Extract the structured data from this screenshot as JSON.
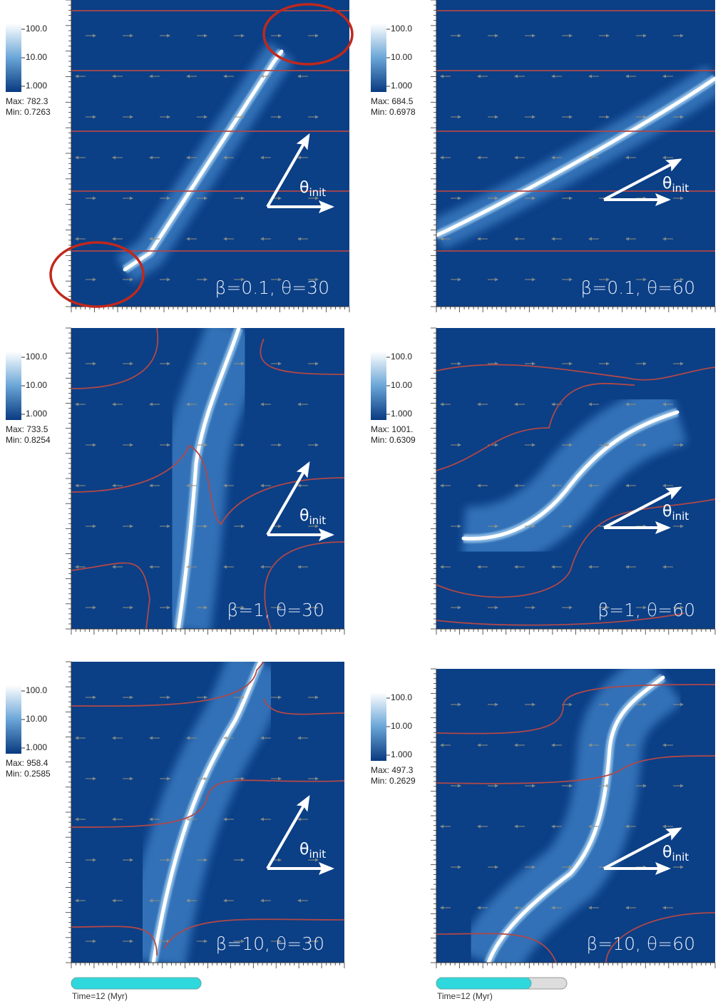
{
  "panels": [
    {
      "colorbar": [
        "100.0",
        "10.00",
        "1.000"
      ],
      "max": "Max: 782.3",
      "min": "Min: 0.7263",
      "theta_symbol": "θ",
      "theta_subscript": "init",
      "label": "β=0.1, θ=30"
    },
    {
      "colorbar": [
        "100.0",
        "10.00",
        "1.000"
      ],
      "max": "Max: 684.5",
      "min": "Min: 0.6978",
      "theta_symbol": "θ",
      "theta_subscript": "init",
      "label": "β=0.1, θ=60"
    },
    {
      "colorbar": [
        "100.0",
        "10.00",
        "1.000"
      ],
      "max": "Max: 733.5",
      "min": "Min: 0.8254",
      "theta_symbol": "θ",
      "theta_subscript": "init",
      "label": "β=1, θ=30"
    },
    {
      "colorbar": [
        "100.0",
        "10.00",
        "1.000"
      ],
      "max": "Max: 1001.",
      "min": "Min: 0.6309",
      "theta_symbol": "θ",
      "theta_subscript": "init",
      "label": "β=1, θ=60"
    },
    {
      "colorbar": [
        "100.0",
        "10.00",
        "1.000"
      ],
      "max": "Max: 958.4",
      "min": "Min: 0.2585",
      "theta_symbol": "θ",
      "theta_subscript": "init",
      "label": "β=10, θ=30"
    },
    {
      "colorbar": [
        "100.0",
        "10.00",
        "1.000"
      ],
      "max": "Max: 497.3",
      "min": "Min: 0.2629",
      "theta_symbol": "θ",
      "theta_subscript": "init",
      "label": "β=10, θ=60"
    }
  ],
  "time_labels": [
    "Time=12 (Myr)",
    "Time=12 (Myr)"
  ]
}
